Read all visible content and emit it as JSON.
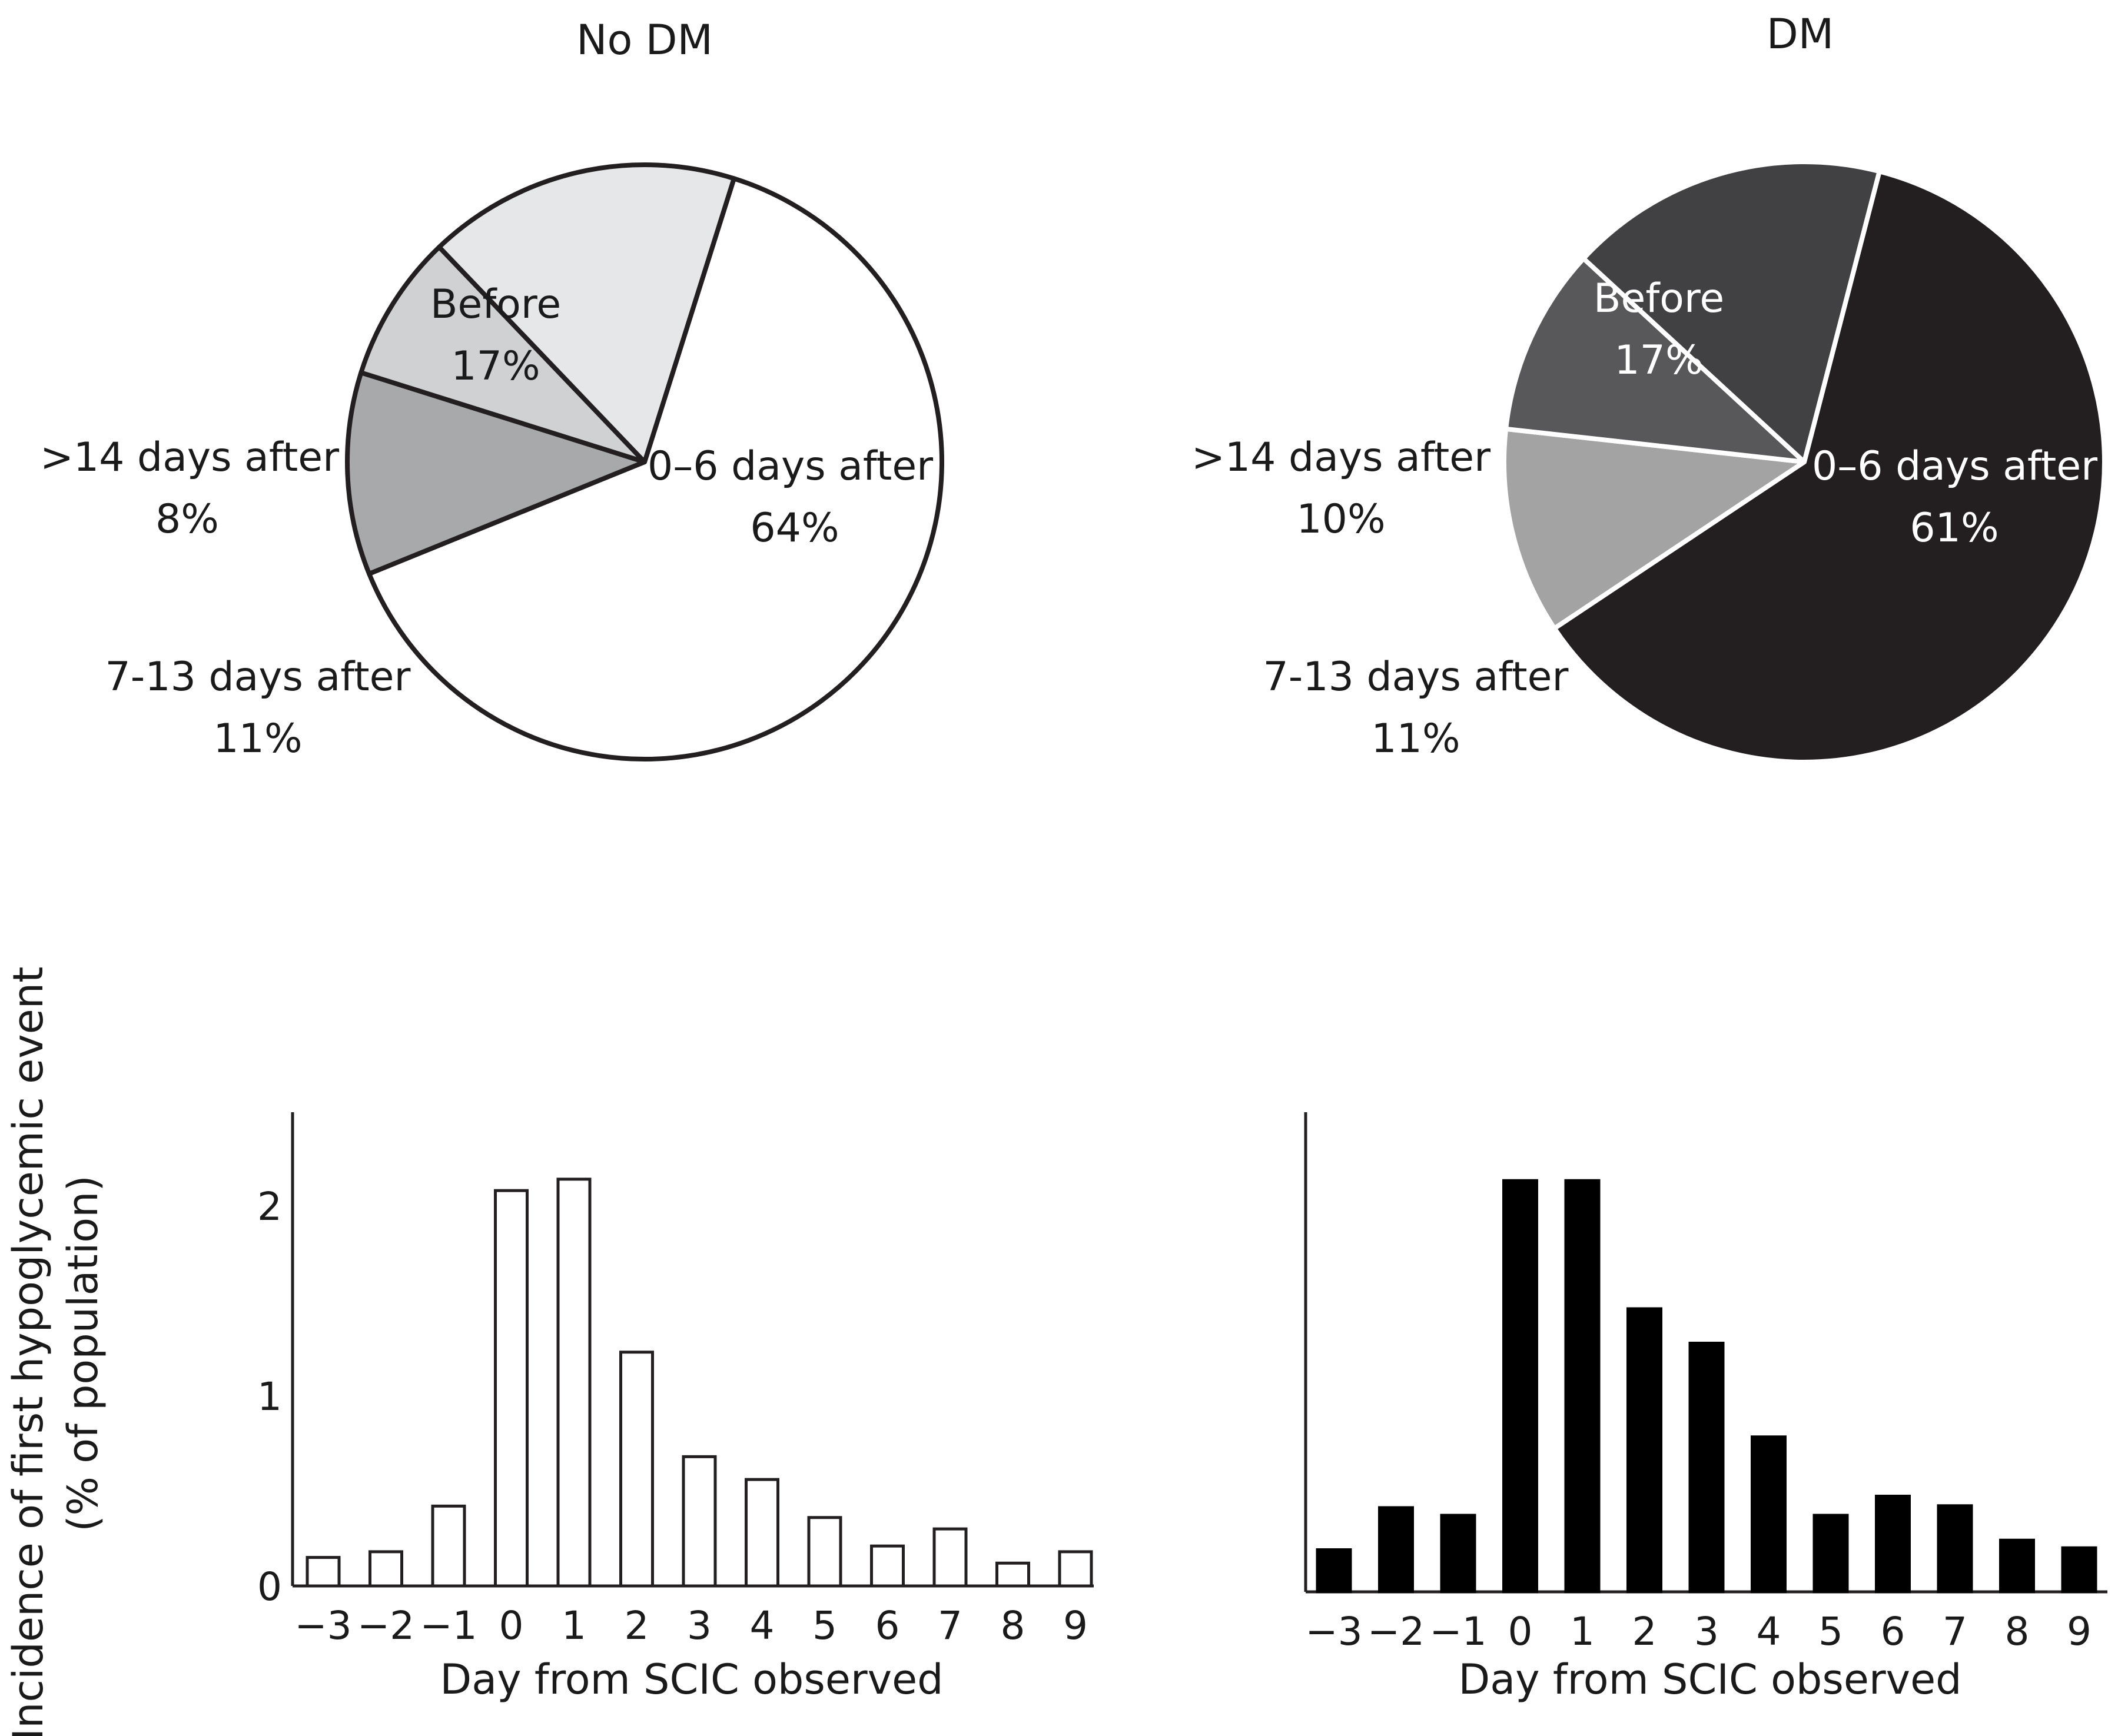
{
  "chart_data": [
    {
      "type": "pie",
      "title": "No DM",
      "slices": [
        {
          "label": "0–6 days after",
          "value": 64,
          "value_text": "64%",
          "color": "#ffffff",
          "label_color": "#1a1a1a"
        },
        {
          "label": "7-13 days after",
          "value": 11,
          "value_text": "11%",
          "color": "#a8a9ab",
          "label_color": "#1a1a1a"
        },
        {
          "label": ">14 days after",
          "value": 8,
          "value_text": "8%",
          "color": "#d0d1d3",
          "label_color": "#1a1a1a"
        },
        {
          "label": "Before",
          "value": 17,
          "value_text": "17%",
          "color": "#e6e7e8",
          "label_color": "#1a1a1a"
        }
      ],
      "stroke_color": "#231f20"
    },
    {
      "type": "pie",
      "title": "DM",
      "slices": [
        {
          "label": "0–6 days after",
          "value": 61,
          "value_text": "61%",
          "color": "#231f20",
          "label_color": "#ffffff"
        },
        {
          "label": "7-13 days after",
          "value": 11,
          "value_text": "11%",
          "color": "#a3a3a3",
          "label_color": "#1a1a1a"
        },
        {
          "label": ">14 days after",
          "value": 10,
          "value_text": "10%",
          "color": "#58585a",
          "label_color": "#1a1a1a"
        },
        {
          "label": "Before",
          "value": 17,
          "value_text": "17%",
          "color": "#414042",
          "label_color": "#ffffff"
        }
      ],
      "stroke_color": "#ffffff"
    },
    {
      "type": "bar",
      "title": "",
      "categories": [
        "−3",
        "−2",
        "−1",
        "0",
        "1",
        "2",
        "3",
        "4",
        "5",
        "6",
        "7",
        "8",
        "9"
      ],
      "values": [
        0.15,
        0.18,
        0.42,
        2.08,
        2.14,
        1.23,
        0.68,
        0.56,
        0.36,
        0.21,
        0.3,
        0.12,
        0.18
      ],
      "xlabel": "Day from SCIC observed",
      "ylabel": "Incidence of first hypoglycemic event",
      "ylabel2": "(% of population)",
      "yticks": [
        "0",
        "1",
        "2"
      ],
      "ylim": [
        0,
        2.5
      ],
      "bar_fill": "#ffffff",
      "bar_stroke": "#231f20"
    },
    {
      "type": "bar",
      "title": "",
      "categories": [
        "−3",
        "−2",
        "−1",
        "0",
        "1",
        "2",
        "3",
        "4",
        "5",
        "6",
        "7",
        "8",
        "9"
      ],
      "values": [
        0.22,
        0.44,
        0.4,
        2.15,
        2.15,
        1.48,
        1.3,
        0.81,
        0.4,
        0.5,
        0.45,
        0.27,
        0.23
      ],
      "xlabel": "Day from SCIC observed",
      "ylim": [
        0,
        2.5
      ],
      "bar_fill": "#000000",
      "bar_stroke": "#000000"
    }
  ]
}
